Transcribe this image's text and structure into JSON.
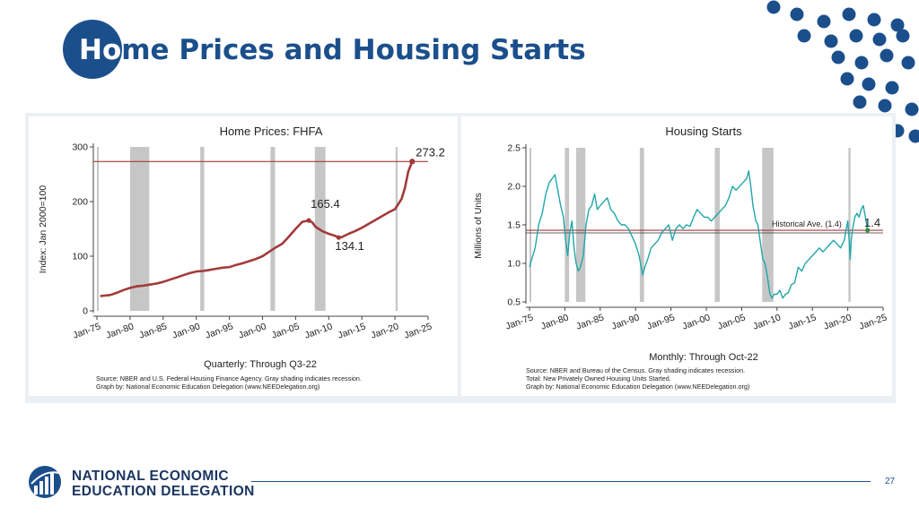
{
  "slide": {
    "title_prefix": "Ho",
    "title_rest": "me Prices and Housing Starts",
    "page_number": "27",
    "logo_line1": "NATIONAL ECONOMIC",
    "logo_line2": "EDUCATION DELEGATION",
    "colors": {
      "brand": "#1b4f8c",
      "recession": "#c6c6c6",
      "price_line": "#a33a3a",
      "starts_line": "#21a6a8",
      "reference": "#a33a3a"
    }
  },
  "chart_data": [
    {
      "type": "line",
      "title": "Home Prices: FHFA",
      "ylabel": "Index: Jan 2000=100",
      "xlabel": "Quarterly: Through Q3-22",
      "ylim": [
        0,
        300
      ],
      "xlim": [
        1975,
        2025
      ],
      "yticks": [
        "0",
        "100",
        "200",
        "300"
      ],
      "xticks": [
        "Jan-75",
        "Jan-80",
        "Jan-85",
        "Jan-90",
        "Jan-95",
        "Jan-00",
        "Jan-05",
        "Jan-10",
        "Jan-15",
        "Jan-20",
        "Jan-25"
      ],
      "xtick_years": [
        1975,
        1980,
        1985,
        1990,
        1995,
        2000,
        2005,
        2010,
        2015,
        2020,
        2025
      ],
      "recessions": [
        [
          1975.0,
          1975.2
        ],
        [
          1980.0,
          1982.9
        ],
        [
          1990.6,
          1991.2
        ],
        [
          2001.2,
          2001.9
        ],
        [
          2007.9,
          2009.5
        ],
        [
          2020.1,
          2020.4
        ]
      ],
      "reference_value": 273.2,
      "series": [
        {
          "x": [
            1975.5,
            1977,
            1978,
            1979,
            1980,
            1981,
            1982,
            1983,
            1984,
            1985,
            1986,
            1987,
            1988,
            1989,
            1990,
            1991,
            1992,
            1993,
            1994,
            1995,
            1996,
            1997,
            1998,
            1999,
            2000,
            2001,
            2002,
            2003,
            2004,
            2005,
            2006,
            2007,
            2007.5,
            2008,
            2009,
            2010,
            2011,
            2011.5,
            2012,
            2013,
            2014,
            2015,
            2016,
            2017,
            2018,
            2019,
            2020,
            2021,
            2021.5,
            2022,
            2022.6
          ],
          "y": [
            27,
            29,
            33,
            38,
            42,
            45,
            46,
            48,
            50,
            53,
            57,
            61,
            65,
            69,
            72,
            73,
            75,
            77,
            79,
            80,
            84,
            87,
            91,
            95,
            100,
            108,
            116,
            123,
            136,
            150,
            163,
            165.4,
            162,
            154,
            146,
            141,
            137,
            134.1,
            135,
            141,
            146,
            152,
            159,
            166,
            173,
            180,
            186,
            205,
            225,
            255,
            273.2
          ]
        }
      ],
      "annotations": [
        {
          "text": "273.2",
          "x": 2022.6,
          "y": 273.2
        },
        {
          "text": "165.4",
          "x": 2007.0,
          "y": 165.4
        },
        {
          "text": "134.1",
          "x": 2011.5,
          "y": 134.1
        }
      ],
      "source_lines": [
        "Source: NBER and U.S. Federal Housing Finance Agency. Gray shading indicates recession.",
        "Graph by: National Economic Education Delegation (www.NEEDelegation.org)"
      ]
    },
    {
      "type": "line",
      "title": "Housing Starts",
      "ylabel": "Millions of Units",
      "xlabel": "Monthly: Through Oct-22",
      "ylim": [
        0.5,
        2.5
      ],
      "xlim": [
        1975,
        2025
      ],
      "yticks": [
        "0.5",
        "1.0",
        "1.5",
        "2.0",
        "2.5"
      ],
      "xticks": [
        "Jan-75",
        "Jan-80",
        "Jan-85",
        "Jan-90",
        "Jan-95",
        "Jan-00",
        "Jan-05",
        "Jan-10",
        "Jan-15",
        "Jan-20",
        "Jan-25"
      ],
      "xtick_years": [
        1975,
        1980,
        1985,
        1990,
        1995,
        2000,
        2005,
        2010,
        2015,
        2020,
        2025
      ],
      "recessions": [
        [
          1975.0,
          1975.2
        ],
        [
          1980.0,
          1980.6
        ],
        [
          1981.6,
          1982.9
        ],
        [
          1990.6,
          1991.2
        ],
        [
          2001.2,
          2001.9
        ],
        [
          2007.9,
          2009.5
        ],
        [
          2020.1,
          2020.4
        ]
      ],
      "reference_value": 1.43,
      "reference_label": "Historical Ave. (1.4)",
      "end_label": "1.4",
      "series": [
        {
          "x": [
            1975.0,
            1975.3,
            1975.8,
            1976.3,
            1976.8,
            1977.3,
            1977.8,
            1978.2,
            1978.6,
            1979.0,
            1979.4,
            1979.8,
            1980.1,
            1980.4,
            1980.7,
            1981.0,
            1981.3,
            1981.6,
            1981.9,
            1982.2,
            1982.6,
            1983.0,
            1983.4,
            1983.8,
            1984.2,
            1984.6,
            1985.0,
            1985.5,
            1986.0,
            1986.5,
            1987.0,
            1987.5,
            1988.0,
            1988.5,
            1989.0,
            1989.5,
            1990.0,
            1990.5,
            1991.0,
            1991.3,
            1991.7,
            1992.2,
            1992.7,
            1993.2,
            1993.7,
            1994.2,
            1994.7,
            1995.2,
            1995.7,
            1996.2,
            1996.7,
            1997.2,
            1997.7,
            1998.2,
            1998.7,
            1999.2,
            1999.7,
            2000.2,
            2000.7,
            2001.2,
            2001.7,
            2002.2,
            2002.7,
            2003.2,
            2003.7,
            2004.2,
            2004.7,
            2005.2,
            2005.7,
            2006.0,
            2006.3,
            2006.6,
            2007.0,
            2007.3,
            2007.6,
            2008.0,
            2008.3,
            2008.6,
            2009.0,
            2009.3,
            2009.6,
            2010.0,
            2010.4,
            2010.8,
            2011.2,
            2011.6,
            2012.0,
            2012.5,
            2013.0,
            2013.5,
            2014.0,
            2014.5,
            2015.0,
            2015.5,
            2016.0,
            2016.5,
            2017.0,
            2017.5,
            2018.0,
            2018.5,
            2019.0,
            2019.5,
            2020.0,
            2020.2,
            2020.35,
            2020.5,
            2020.7,
            2021.0,
            2021.3,
            2021.6,
            2021.9,
            2022.2,
            2022.5,
            2022.8
          ],
          "y": [
            0.95,
            1.05,
            1.2,
            1.5,
            1.65,
            1.9,
            2.05,
            2.1,
            2.15,
            1.95,
            1.75,
            1.6,
            1.3,
            1.1,
            1.4,
            1.55,
            1.2,
            1.0,
            0.9,
            0.95,
            1.1,
            1.5,
            1.7,
            1.75,
            1.9,
            1.7,
            1.75,
            1.8,
            1.85,
            1.7,
            1.65,
            1.55,
            1.5,
            1.5,
            1.45,
            1.35,
            1.25,
            1.1,
            0.85,
            0.95,
            1.05,
            1.2,
            1.25,
            1.3,
            1.4,
            1.45,
            1.5,
            1.3,
            1.45,
            1.5,
            1.45,
            1.5,
            1.48,
            1.6,
            1.7,
            1.65,
            1.6,
            1.6,
            1.55,
            1.6,
            1.65,
            1.7,
            1.75,
            1.85,
            2.0,
            1.95,
            2.0,
            2.05,
            2.1,
            2.2,
            2.0,
            1.75,
            1.55,
            1.5,
            1.3,
            1.05,
            1.0,
            0.85,
            0.6,
            0.55,
            0.6,
            0.6,
            0.65,
            0.55,
            0.6,
            0.62,
            0.72,
            0.75,
            0.95,
            0.9,
            1.0,
            1.05,
            1.1,
            1.15,
            1.2,
            1.15,
            1.2,
            1.25,
            1.3,
            1.25,
            1.2,
            1.3,
            1.55,
            1.3,
            1.05,
            1.3,
            1.45,
            1.6,
            1.65,
            1.6,
            1.7,
            1.75,
            1.6,
            1.43
          ]
        }
      ],
      "source_lines": [
        "Source: NBER and Bureau of the Census. Gray shading indicates recession.",
        "Total: New Privately Owned Housing Units Started.",
        "Graph by: National Economic Education Delegation (www.NEEDelegation.org)"
      ]
    }
  ]
}
